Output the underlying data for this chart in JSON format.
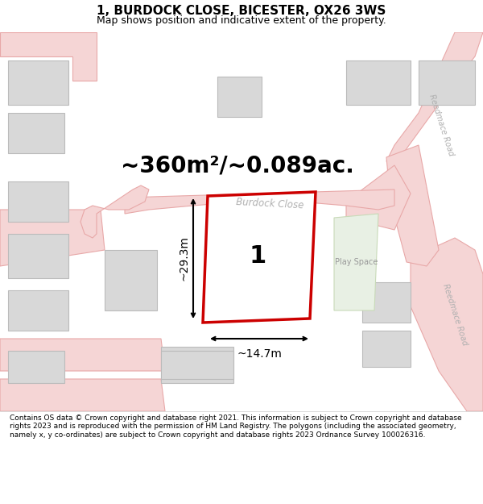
{
  "title": "1, BURDOCK CLOSE, BICESTER, OX26 3WS",
  "subtitle": "Map shows position and indicative extent of the property.",
  "area_text": "~360m²/~0.089ac.",
  "plot_number": "1",
  "width_label": "~14.7m",
  "height_label": "~29.3m",
  "road_label_1": "Burdock Close",
  "road_label_2": "Reedmace Road",
  "road_label_3": "Reedmace Road",
  "play_space_label": "Play Space",
  "footer_text": "Contains OS data © Crown copyright and database right 2021. This information is subject to Crown copyright and database rights 2023 and is reproduced with the permission of HM Land Registry. The polygons (including the associated geometry, namely x, y co-ordinates) are subject to Crown copyright and database rights 2023 Ordnance Survey 100026316.",
  "bg_color": "#f2f2f2",
  "road_fill": "#f5d5d5",
  "road_edge": "#e8a8a8",
  "building_fill": "#d8d8d8",
  "building_edge": "#bbbbbb",
  "green_fill": "#e8f0e4",
  "green_edge": "#c8dab8",
  "plot_fill": "#ffffff",
  "plot_edge": "#cc0000",
  "road_text_color": "#b0b0b0",
  "play_text_color": "#999999",
  "title_fontsize": 11,
  "subtitle_fontsize": 9,
  "area_fontsize": 20,
  "plot_num_fontsize": 22
}
